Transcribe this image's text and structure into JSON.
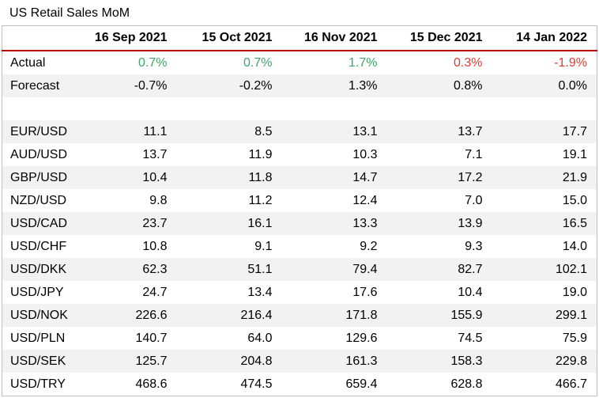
{
  "title": "US Retail Sales MoM",
  "colors": {
    "positive": "#3fa66a",
    "negative": "#e03c31",
    "header_rule": "#c00000",
    "stripe": "#f2f2f2"
  },
  "chart_data": {
    "type": "table",
    "title": "US Retail Sales MoM",
    "columns": [
      "16 Sep 2021",
      "15 Oct 2021",
      "16 Nov 2021",
      "15 Dec 2021",
      "14 Jan 2022"
    ],
    "actual": {
      "label": "Actual",
      "values": [
        "0.7%",
        "0.7%",
        "1.7%",
        "0.3%",
        "-1.9%"
      ],
      "sentiment": [
        "pos",
        "pos",
        "pos",
        "neg",
        "neg"
      ]
    },
    "forecast": {
      "label": "Forecast",
      "values": [
        "-0.7%",
        "-0.2%",
        "1.3%",
        "0.8%",
        "0.0%"
      ]
    },
    "pairs": [
      {
        "label": "EUR/USD",
        "values": [
          "11.1",
          "8.5",
          "13.1",
          "13.7",
          "17.7"
        ]
      },
      {
        "label": "AUD/USD",
        "values": [
          "13.7",
          "11.9",
          "10.3",
          "7.1",
          "19.1"
        ]
      },
      {
        "label": "GBP/USD",
        "values": [
          "10.4",
          "11.8",
          "14.7",
          "17.2",
          "21.9"
        ]
      },
      {
        "label": "NZD/USD",
        "values": [
          "9.8",
          "11.2",
          "12.4",
          "7.0",
          "15.0"
        ]
      },
      {
        "label": "USD/CAD",
        "values": [
          "23.7",
          "16.1",
          "13.3",
          "13.9",
          "16.5"
        ]
      },
      {
        "label": "USD/CHF",
        "values": [
          "10.8",
          "9.1",
          "9.2",
          "9.3",
          "14.0"
        ]
      },
      {
        "label": "USD/DKK",
        "values": [
          "62.3",
          "51.1",
          "79.4",
          "82.7",
          "102.1"
        ]
      },
      {
        "label": "USD/JPY",
        "values": [
          "24.7",
          "13.4",
          "17.6",
          "10.4",
          "19.0"
        ]
      },
      {
        "label": "USD/NOK",
        "values": [
          "226.6",
          "216.4",
          "171.8",
          "155.9",
          "299.1"
        ]
      },
      {
        "label": "USD/PLN",
        "values": [
          "140.7",
          "64.0",
          "129.6",
          "74.5",
          "75.9"
        ]
      },
      {
        "label": "USD/SEK",
        "values": [
          "125.7",
          "204.8",
          "161.3",
          "158.3",
          "229.8"
        ]
      },
      {
        "label": "USD/TRY",
        "values": [
          "468.6",
          "474.5",
          "659.4",
          "628.8",
          "466.7"
        ]
      }
    ]
  }
}
